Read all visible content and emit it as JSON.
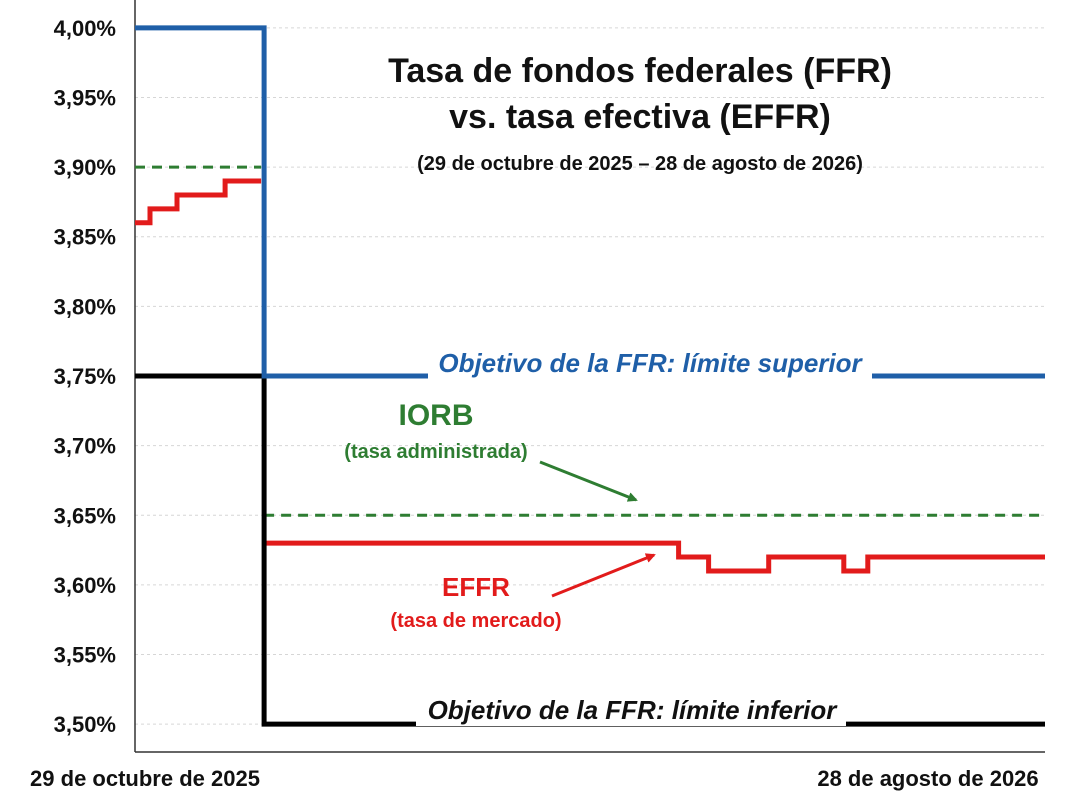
{
  "chart_data": {
    "type": "line",
    "title": "Tasa de fondos federales (FFR)",
    "title_line2": "vs. tasa efectiva (EFFR)",
    "subtitle": "(29 de octubre de 2025 – 28 de agosto de 2026)",
    "x_start_label": "29 de octubre de 2025",
    "x_end_label": "28 de agosto de 2026",
    "xlim": [
      "2025-10-29",
      "2026-08-28"
    ],
    "ylim": [
      3.48,
      4.02
    ],
    "y_ticks": [
      3.5,
      3.55,
      3.6,
      3.65,
      3.7,
      3.75,
      3.8,
      3.85,
      3.9,
      3.95,
      4.0
    ],
    "y_tick_labels": [
      "3,50%",
      "3,55%",
      "3,60%",
      "3,65%",
      "3,70%",
      "3,75%",
      "3,80%",
      "3,85%",
      "3,90%",
      "3,95%",
      "4,00%"
    ],
    "grid": true,
    "series": [
      {
        "key": "upper",
        "color": "#1f5fa8",
        "style": "solid",
        "points": [
          [
            "2025-10-29",
            4.0
          ],
          [
            "2025-12-11",
            4.0
          ],
          [
            "2025-12-11",
            3.75
          ],
          [
            "2026-08-28",
            3.75
          ]
        ]
      },
      {
        "key": "lower",
        "color": "#000000",
        "style": "solid",
        "points": [
          [
            "2025-10-29",
            3.75
          ],
          [
            "2025-12-11",
            3.75
          ],
          [
            "2025-12-11",
            3.5
          ],
          [
            "2026-08-28",
            3.5
          ]
        ]
      },
      {
        "key": "iorb",
        "color": "#2e7d32",
        "style": "dashed",
        "segments": [
          [
            [
              "2025-10-29",
              3.9
            ],
            [
              "2025-12-10",
              3.9
            ]
          ],
          [
            [
              "2025-12-11",
              3.65
            ],
            [
              "2026-08-28",
              3.65
            ]
          ]
        ]
      },
      {
        "key": "effr",
        "color": "#e21b1b",
        "style": "step",
        "segments": [
          [
            [
              "2025-10-29",
              3.86
            ],
            [
              "2025-11-03",
              3.86
            ],
            [
              "2025-11-03",
              3.87
            ],
            [
              "2025-11-12",
              3.87
            ],
            [
              "2025-11-12",
              3.88
            ],
            [
              "2025-11-28",
              3.88
            ],
            [
              "2025-11-28",
              3.89
            ],
            [
              "2025-12-10",
              3.89
            ]
          ],
          [
            [
              "2025-12-11",
              3.63
            ],
            [
              "2026-04-28",
              3.63
            ],
            [
              "2026-04-28",
              3.62
            ],
            [
              "2026-05-08",
              3.62
            ],
            [
              "2026-05-08",
              3.61
            ],
            [
              "2026-05-28",
              3.61
            ],
            [
              "2026-05-28",
              3.62
            ],
            [
              "2026-06-22",
              3.62
            ],
            [
              "2026-06-22",
              3.61
            ],
            [
              "2026-06-30",
              3.61
            ],
            [
              "2026-06-30",
              3.62
            ],
            [
              "2026-08-28",
              3.62
            ]
          ]
        ]
      }
    ],
    "annotations": {
      "upper_label": "Objetivo de la FFR: límite superior",
      "lower_label": "Objetivo de la FFR: límite inferior",
      "iorb_label": "IORB",
      "iorb_sublabel": "(tasa administrada)",
      "effr_label": "EFFR",
      "effr_sublabel": "(tasa de mercado)"
    }
  }
}
